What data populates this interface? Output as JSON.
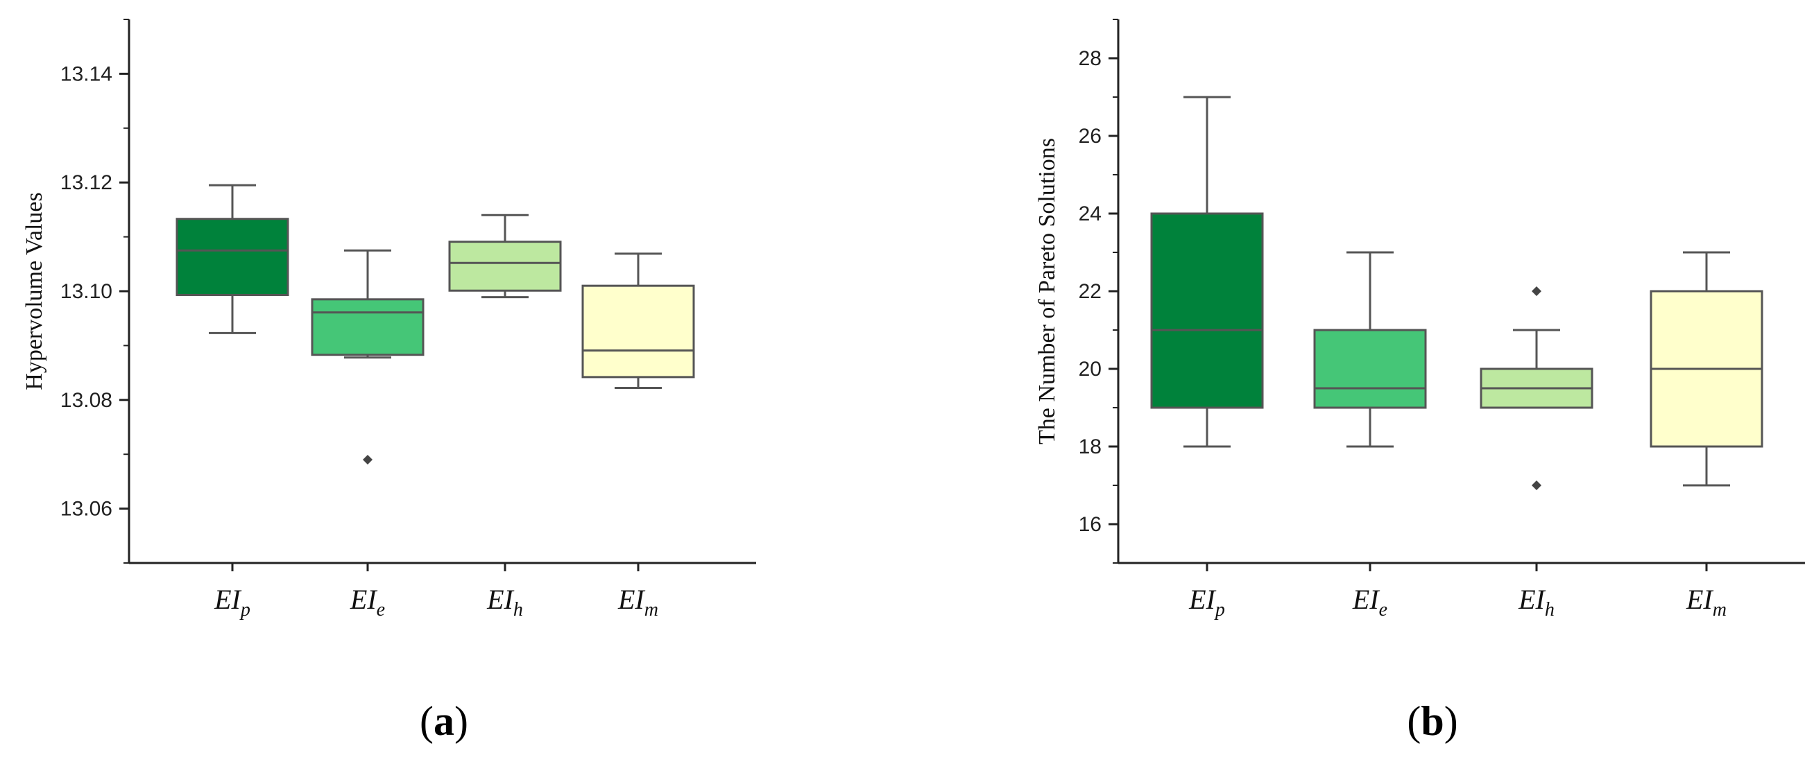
{
  "chart_data": [
    {
      "type": "box",
      "panel_label": "a",
      "ylabel": "Hypervolume Values",
      "ylim": [
        13.05,
        13.15
      ],
      "yticks": [
        13.06,
        13.08,
        13.1,
        13.12,
        13.14
      ],
      "ytick_labels": [
        "13.06",
        "13.08",
        "13.10",
        "13.12",
        "13.14"
      ],
      "categories": [
        {
          "main": "EI",
          "sub": "p"
        },
        {
          "main": "EI",
          "sub": "e"
        },
        {
          "main": "EI",
          "sub": "h"
        },
        {
          "main": "EI",
          "sub": "m"
        }
      ],
      "boxes": [
        {
          "min": 13.0923,
          "q1": 13.0993,
          "median": 13.1075,
          "q3": 13.1133,
          "max": 13.1195,
          "outliers": [],
          "color": "#00823b"
        },
        {
          "min": 13.0878,
          "q1": 13.0883,
          "median": 13.0961,
          "q3": 13.0985,
          "max": 13.1075,
          "outliers": [
            13.069
          ],
          "color": "#45c677"
        },
        {
          "min": 13.0989,
          "q1": 13.1001,
          "median": 13.1052,
          "q3": 13.1091,
          "max": 13.114,
          "outliers": [],
          "color": "#bde8a0"
        },
        {
          "min": 13.0822,
          "q1": 13.0842,
          "median": 13.0891,
          "q3": 13.101,
          "max": 13.1069,
          "outliers": [],
          "color": "#ffffcc"
        }
      ]
    },
    {
      "type": "box",
      "panel_label": "b",
      "ylabel": "The Number of Pareto Solutions",
      "ylim": [
        15,
        29
      ],
      "yticks": [
        16,
        18,
        20,
        22,
        24,
        26,
        28
      ],
      "ytick_labels": [
        "16",
        "18",
        "20",
        "22",
        "24",
        "26",
        "28"
      ],
      "categories": [
        {
          "main": "EI",
          "sub": "p"
        },
        {
          "main": "EI",
          "sub": "e"
        },
        {
          "main": "EI",
          "sub": "h"
        },
        {
          "main": "EI",
          "sub": "m"
        }
      ],
      "boxes": [
        {
          "min": 18,
          "q1": 19,
          "median": 21,
          "q3": 24,
          "max": 27,
          "outliers": [],
          "color": "#00823b"
        },
        {
          "min": 18,
          "q1": 19,
          "median": 19.5,
          "q3": 21,
          "max": 23,
          "outliers": [],
          "color": "#45c677"
        },
        {
          "min": 19,
          "q1": 19,
          "median": 19.5,
          "q3": 20,
          "max": 21,
          "outliers": [
            22,
            17
          ],
          "color": "#bde8a0"
        },
        {
          "min": 17,
          "q1": 18,
          "median": 20,
          "q3": 22,
          "max": 23,
          "outliers": [],
          "color": "#ffffcc"
        }
      ]
    }
  ]
}
